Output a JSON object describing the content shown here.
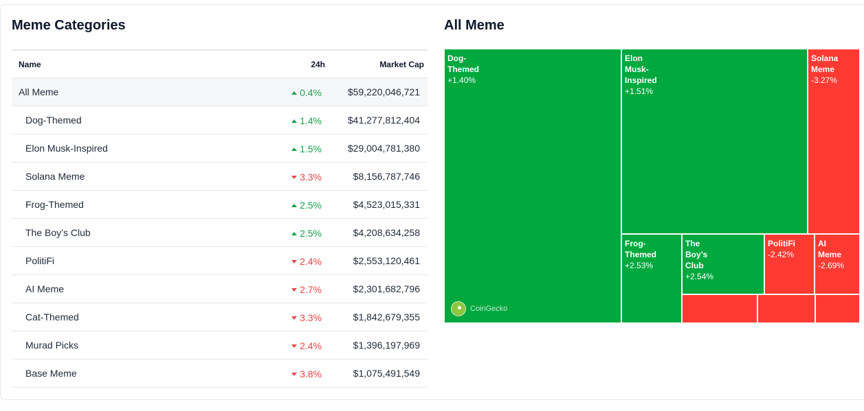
{
  "left": {
    "title": "Meme Categories",
    "columns": {
      "name": "Name",
      "change": "24h",
      "market_cap": "Market Cap"
    },
    "rows": [
      {
        "name": "All Meme",
        "direction": "up",
        "change": "0.4%",
        "market_cap": "$59,220,046,721"
      },
      {
        "name": "Dog-Themed",
        "direction": "up",
        "change": "1.4%",
        "market_cap": "$41,277,812,404"
      },
      {
        "name": "Elon Musk-Inspired",
        "direction": "up",
        "change": "1.5%",
        "market_cap": "$29,004,781,380"
      },
      {
        "name": "Solana Meme",
        "direction": "down",
        "change": "3.3%",
        "market_cap": "$8,156,787,746"
      },
      {
        "name": "Frog-Themed",
        "direction": "up",
        "change": "2.5%",
        "market_cap": "$4,523,015,331"
      },
      {
        "name": "The Boy’s Club",
        "direction": "up",
        "change": "2.5%",
        "market_cap": "$4,208,634,258"
      },
      {
        "name": "PolitiFi",
        "direction": "down",
        "change": "2.4%",
        "market_cap": "$2,553,120,461"
      },
      {
        "name": "AI Meme",
        "direction": "down",
        "change": "2.7%",
        "market_cap": "$2,301,682,796"
      },
      {
        "name": "Cat-Themed",
        "direction": "down",
        "change": "3.3%",
        "market_cap": "$1,842,679,355"
      },
      {
        "name": "Murad Picks",
        "direction": "down",
        "change": "2.4%",
        "market_cap": "$1,396,197,969"
      },
      {
        "name": "Base Meme",
        "direction": "down",
        "change": "3.8%",
        "market_cap": "$1,075,491,549"
      }
    ]
  },
  "right": {
    "title": "All Meme",
    "watermark": "CoinGecko",
    "tiles": [
      {
        "name": "Dog-\nThemed",
        "change": "+1.40%",
        "color": "green"
      },
      {
        "name": "Elon\nMusk-\nInspired",
        "change": "+1.51%",
        "color": "green"
      },
      {
        "name": "Solana\nMeme",
        "change": "-3.27%",
        "color": "red"
      },
      {
        "name": "Frog-\nThemed",
        "change": "+2.53%",
        "color": "green"
      },
      {
        "name": "The\nBoy’s\nClub",
        "change": "+2.54%",
        "color": "green"
      },
      {
        "name": "PolitiFi",
        "change": "-2.42%",
        "color": "red"
      },
      {
        "name": "AI\nMeme",
        "change": "-2.69%",
        "color": "red"
      },
      {
        "name": "",
        "change": "",
        "color": "red"
      },
      {
        "name": "",
        "change": "",
        "color": "red"
      },
      {
        "name": "",
        "change": "",
        "color": "red"
      }
    ]
  },
  "colors": {
    "up": "#16a34a",
    "down": "#ef4444",
    "tile_green": "#00a83e",
    "tile_red": "#ff3a33"
  }
}
